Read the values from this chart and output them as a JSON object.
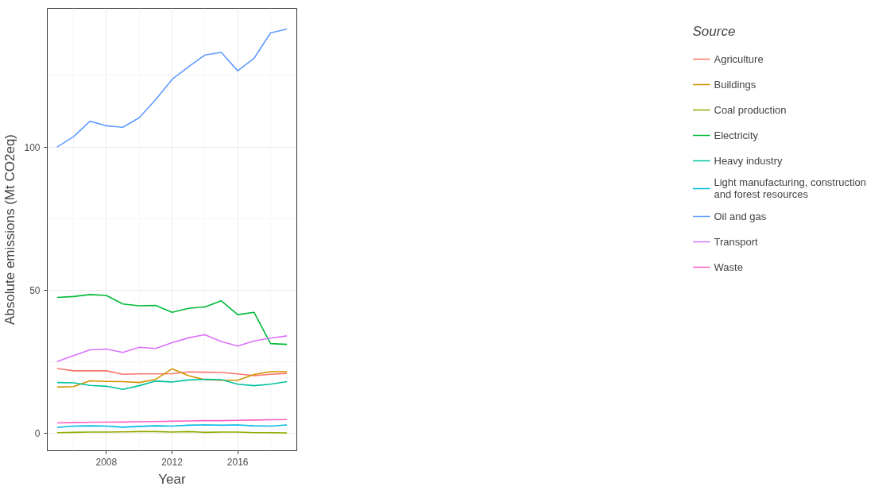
{
  "chart_data": {
    "type": "line",
    "xlabel": "Year",
    "ylabel": "Absolute emissions (Mt CO2eq)",
    "legend_title": "Source",
    "legend": "right",
    "grid": true,
    "x": [
      2005,
      2006,
      2007,
      2008,
      2009,
      2010,
      2011,
      2012,
      2013,
      2014,
      2015,
      2016,
      2017,
      2018,
      2019
    ],
    "xlim": [
      2004.4,
      2019.6
    ],
    "ylim": [
      -6,
      148.4
    ],
    "xticks": [
      2008,
      2012,
      2016
    ],
    "yticks": [
      0,
      50,
      100
    ],
    "series": [
      {
        "name": "Agriculture",
        "color": "#f8766d",
        "values": [
          22.7,
          21.9,
          21.9,
          21.9,
          20.7,
          20.8,
          20.8,
          20.9,
          21.5,
          21.4,
          21.3,
          20.8,
          20.2,
          20.7,
          21.0
        ]
      },
      {
        "name": "Buildings",
        "color": "#d39200",
        "values": [
          16.2,
          16.4,
          18.4,
          18.2,
          18.1,
          17.8,
          18.9,
          22.6,
          20.2,
          18.8,
          18.6,
          18.6,
          20.6,
          21.6,
          21.6
        ]
      },
      {
        "name": "Coal production",
        "color": "#93aa00",
        "values": [
          0.3,
          0.4,
          0.5,
          0.5,
          0.6,
          0.7,
          0.7,
          0.5,
          0.7,
          0.4,
          0.5,
          0.5,
          0.3,
          0.3,
          0.2
        ]
      },
      {
        "name": "Electricity",
        "color": "#00ba38",
        "values": [
          47.5,
          47.8,
          48.5,
          48.2,
          45.2,
          44.6,
          44.7,
          42.3,
          43.7,
          44.2,
          46.3,
          41.5,
          42.3,
          31.4,
          31.1
        ]
      },
      {
        "name": "Heavy industry",
        "color": "#00c19f",
        "values": [
          17.8,
          17.7,
          16.8,
          16.5,
          15.4,
          16.7,
          18.3,
          18.0,
          18.7,
          18.9,
          18.8,
          17.2,
          16.7,
          17.2,
          18.1
        ]
      },
      {
        "name": "Light manufacturing, construction\nand forest resources",
        "color": "#00b9e3",
        "values": [
          2.1,
          2.6,
          2.7,
          2.6,
          2.2,
          2.5,
          2.7,
          2.6,
          2.9,
          3.0,
          2.9,
          3.0,
          2.7,
          2.6,
          3.0
        ]
      },
      {
        "name": "Oil and gas",
        "color": "#619cff",
        "values": [
          100,
          103.6,
          109,
          107.4,
          106.9,
          110.2,
          116.5,
          123.6,
          128,
          132.1,
          133,
          126.6,
          131,
          139.8,
          141.2
        ]
      },
      {
        "name": "Transport",
        "color": "#db72fb",
        "values": [
          25.1,
          27.2,
          29.2,
          29.5,
          28.3,
          30.1,
          29.7,
          31.7,
          33.4,
          34.5,
          32.1,
          30.5,
          32.3,
          33.3,
          34.1
        ]
      },
      {
        "name": "Waste",
        "color": "#ff61c3",
        "values": [
          3.7,
          3.8,
          3.9,
          4.0,
          4.0,
          4.1,
          4.2,
          4.3,
          4.4,
          4.5,
          4.5,
          4.6,
          4.7,
          4.8,
          4.9
        ]
      }
    ]
  }
}
